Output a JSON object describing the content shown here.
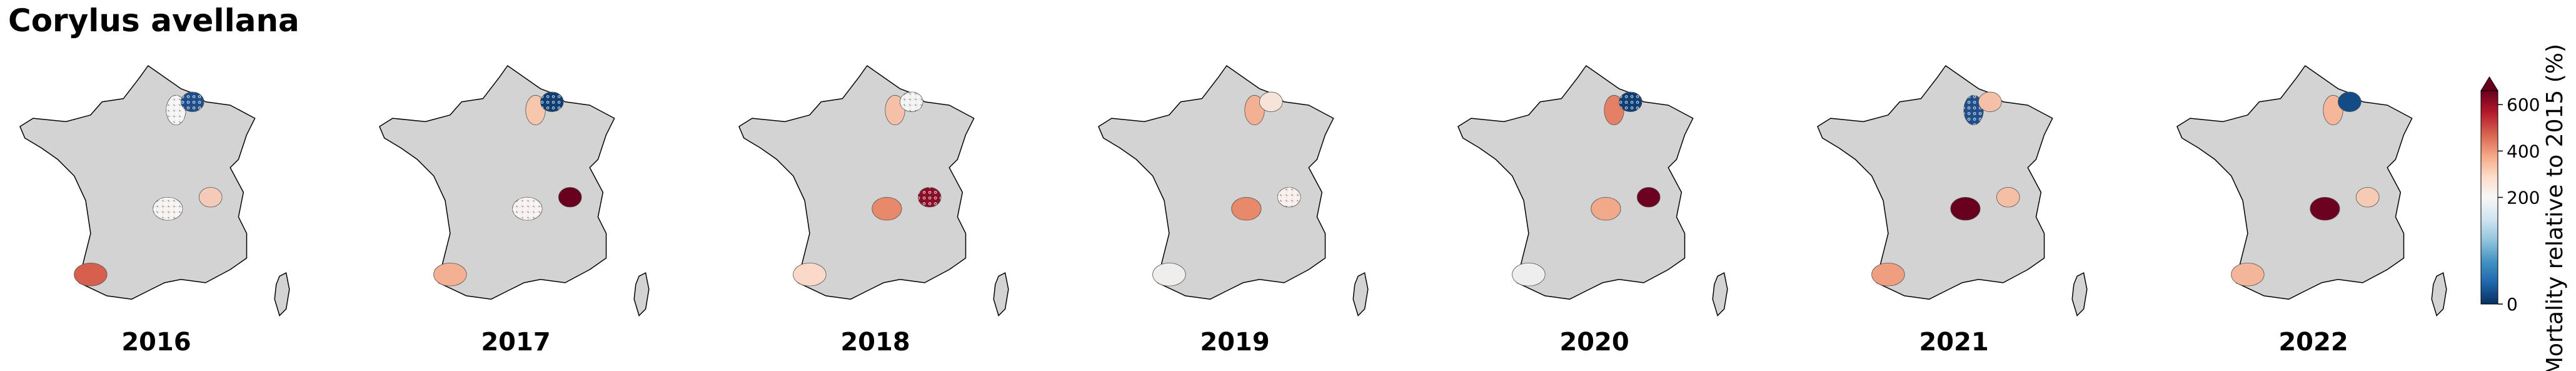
{
  "chart_data": {
    "type": "choropleth",
    "title": "Corylus avellana",
    "panels": [
      {
        "label": "2016",
        "regions": [
          {
            "color": "#f2f2f2",
            "hatched": true
          },
          {
            "color": "#1f4e8c",
            "hatched": true
          },
          {
            "color": "#f5f0ee",
            "hatched": true
          },
          {
            "color": "#f4cbb8",
            "hatched": false
          },
          {
            "color": "#d6604d",
            "hatched": false
          }
        ]
      },
      {
        "label": "2017",
        "regions": [
          {
            "color": "#f7c7ad",
            "hatched": false
          },
          {
            "color": "#0c3d74",
            "hatched": true
          },
          {
            "color": "#f7f0ef",
            "hatched": true
          },
          {
            "color": "#67001f",
            "hatched": false
          },
          {
            "color": "#f4b093",
            "hatched": false
          }
        ]
      },
      {
        "label": "2018",
        "regions": [
          {
            "color": "#f4c0a8",
            "hatched": false
          },
          {
            "color": "#f0f0f0",
            "hatched": true
          },
          {
            "color": "#e8896a",
            "hatched": false
          },
          {
            "color": "#8b0a26",
            "hatched": true
          },
          {
            "color": "#fbd9c8",
            "hatched": false
          }
        ]
      },
      {
        "label": "2019",
        "regions": [
          {
            "color": "#f4b093",
            "hatched": false
          },
          {
            "color": "#f8e3d8",
            "hatched": false
          },
          {
            "color": "#e8896a",
            "hatched": false
          },
          {
            "color": "#f6ede8",
            "hatched": true
          },
          {
            "color": "#f0eeed",
            "hatched": false
          }
        ]
      },
      {
        "label": "2020",
        "regions": [
          {
            "color": "#e48066",
            "hatched": false
          },
          {
            "color": "#0c3d74",
            "hatched": true
          },
          {
            "color": "#f1a98a",
            "hatched": false
          },
          {
            "color": "#6d0220",
            "hatched": false
          },
          {
            "color": "#eeeeee",
            "hatched": false
          }
        ]
      },
      {
        "label": "2021",
        "regions": [
          {
            "color": "#1f4e8c",
            "hatched": true
          },
          {
            "color": "#f4c0a8",
            "hatched": false
          },
          {
            "color": "#67001f",
            "hatched": false
          },
          {
            "color": "#f5bfa5",
            "hatched": false
          },
          {
            "color": "#ef9f7f",
            "hatched": false
          }
        ]
      },
      {
        "label": "2022",
        "regions": [
          {
            "color": "#f6b699",
            "hatched": false
          },
          {
            "color": "#134b87",
            "hatched": false
          },
          {
            "color": "#6d0220",
            "hatched": false
          },
          {
            "color": "#f6cbb6",
            "hatched": false
          },
          {
            "color": "#f4b69a",
            "hatched": false
          }
        ]
      }
    ],
    "land_color": "#d3d3d3",
    "colorbar": {
      "label": "Mortality relative to 2015 (%)",
      "lim": [
        0,
        660
      ],
      "vcenter": 200,
      "ticks": [
        0,
        200,
        400,
        600
      ],
      "extend": "max",
      "colormap": [
        "#053061",
        "#2166ac",
        "#4393c3",
        "#92c5de",
        "#d1e5f0",
        "#f7f7f7",
        "#fddbc7",
        "#f4a582",
        "#d6604d",
        "#b2182b",
        "#67001f"
      ]
    }
  }
}
